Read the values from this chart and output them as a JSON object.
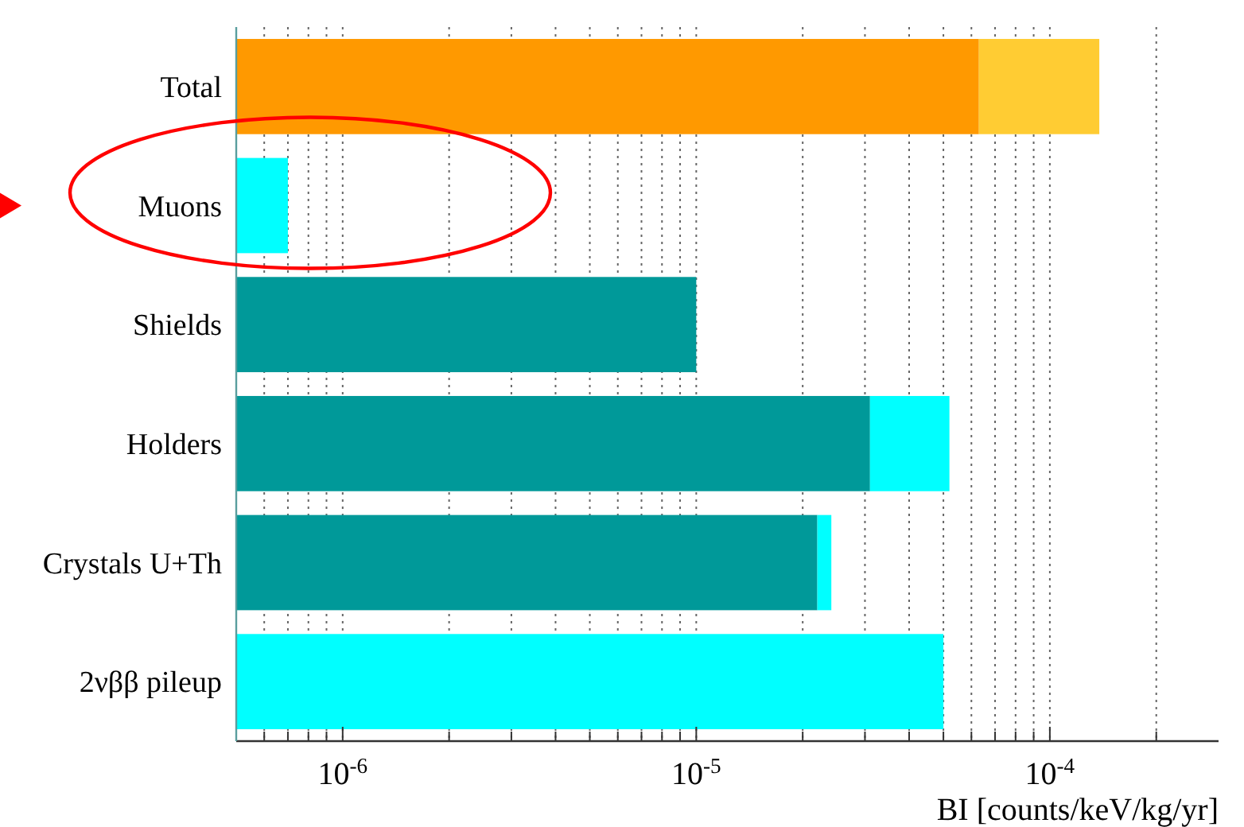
{
  "chart_data": {
    "type": "bar",
    "orientation": "horizontal",
    "stacked": true,
    "categories": [
      "Total",
      "Muons",
      "Shields",
      "Holders",
      "Crystals U+Th",
      "2νββ pileup"
    ],
    "series": [
      {
        "values": [
          6.3e-05,
          null,
          1e-05,
          3.1e-05,
          2.2e-05,
          null
        ],
        "colors": [
          "#ff9900",
          null,
          "#009999",
          "#009999",
          "#009999",
          null
        ]
      },
      {
        "values": [
          7.5e-05,
          7e-07,
          null,
          2.1e-05,
          2.1e-06,
          5e-05
        ],
        "colors": [
          "#ffcc33",
          "#00ffff",
          null,
          "#00ffff",
          "#00ffff",
          "#00ffff"
        ]
      }
    ],
    "xlabel": "BI [counts/keV/kg/yr]",
    "log": "x",
    "xlim": [
      5e-07,
      0.0003
    ],
    "xticks": [
      {
        "value": 6e-07,
        "label": null
      },
      {
        "value": 7e-07,
        "label": null
      },
      {
        "value": 8e-07,
        "label": null
      },
      {
        "value": 9e-07,
        "label": null
      },
      {
        "value": 1e-06,
        "label": "10$^{-6}$"
      },
      {
        "value": 2e-06,
        "label": null
      },
      {
        "value": 3e-06,
        "label": null
      },
      {
        "value": 4e-06,
        "label": null
      },
      {
        "value": 5e-06,
        "label": null
      },
      {
        "value": 6e-06,
        "label": null
      },
      {
        "value": 7e-06,
        "label": null
      },
      {
        "value": 8e-06,
        "label": null
      },
      {
        "value": 9e-06,
        "label": null
      },
      {
        "value": 1e-05,
        "label": "10$^{-5}$"
      },
      {
        "value": 2e-05,
        "label": null
      },
      {
        "value": 3e-05,
        "label": null
      },
      {
        "value": 4e-05,
        "label": null
      },
      {
        "value": 5e-05,
        "label": null
      },
      {
        "value": 6e-05,
        "label": null
      },
      {
        "value": 7e-05,
        "label": null
      },
      {
        "value": 8e-05,
        "label": null
      },
      {
        "value": 9e-05,
        "label": null
      },
      {
        "value": 0.0001,
        "label": "10$^{-4}$"
      },
      {
        "value": 0.0002,
        "label": null
      }
    ],
    "grid": "x"
  }
}
